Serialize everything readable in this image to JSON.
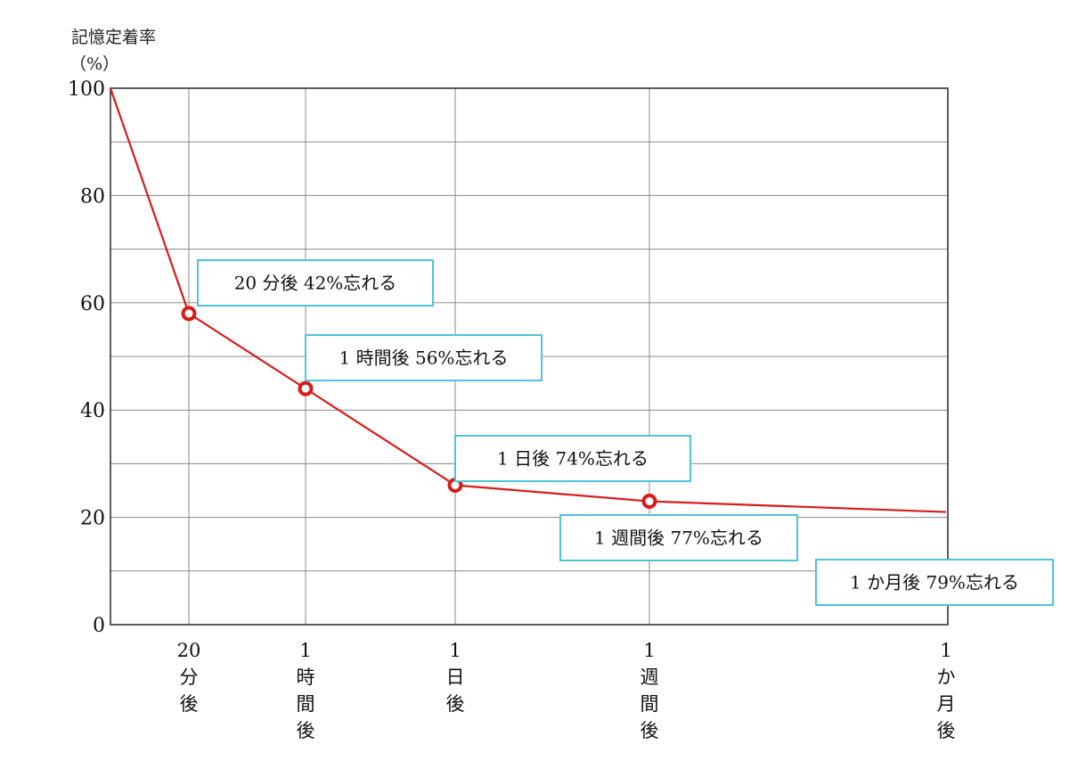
{
  "chart_data": {
    "type": "line",
    "ylabel_line1": "記憶定着率",
    "ylabel_line2": "（%）",
    "ylim": [
      0,
      100
    ],
    "yticks": [
      "100",
      "80",
      "60",
      "40",
      "20",
      "0"
    ],
    "grid": true,
    "x_tick_labels": [
      {
        "lines": [
          "20",
          "分",
          "後"
        ]
      },
      {
        "lines": [
          "1",
          "時",
          "間",
          "後"
        ]
      },
      {
        "lines": [
          "1",
          "日",
          "後"
        ]
      },
      {
        "lines": [
          "1",
          "週",
          "間",
          "後"
        ]
      },
      {
        "lines": [
          "1",
          "か",
          "月",
          "後"
        ]
      }
    ],
    "series": [
      {
        "color": "#d81b1b",
        "points": [
          {
            "x_label": "start",
            "y": 100
          },
          {
            "x_label": "20分後",
            "y": 58
          },
          {
            "x_label": "1時間後",
            "y": 44
          },
          {
            "x_label": "1日後",
            "y": 26
          },
          {
            "x_label": "1週間後",
            "y": 23
          },
          {
            "x_label": "1か月後",
            "y": 21
          }
        ]
      }
    ],
    "annotations": [
      {
        "text": "20 分後 42%忘れる"
      },
      {
        "text": "1 時間後 56%忘れる"
      },
      {
        "text": "1 日後 74%忘れる"
      },
      {
        "text": "1 週間後 77%忘れる"
      },
      {
        "text": "1 か月後 79%忘れる"
      }
    ],
    "colors": {
      "line": "#d81b1b",
      "annotation_border": "#4fc3d9",
      "grid": "#8a8a8a"
    }
  }
}
